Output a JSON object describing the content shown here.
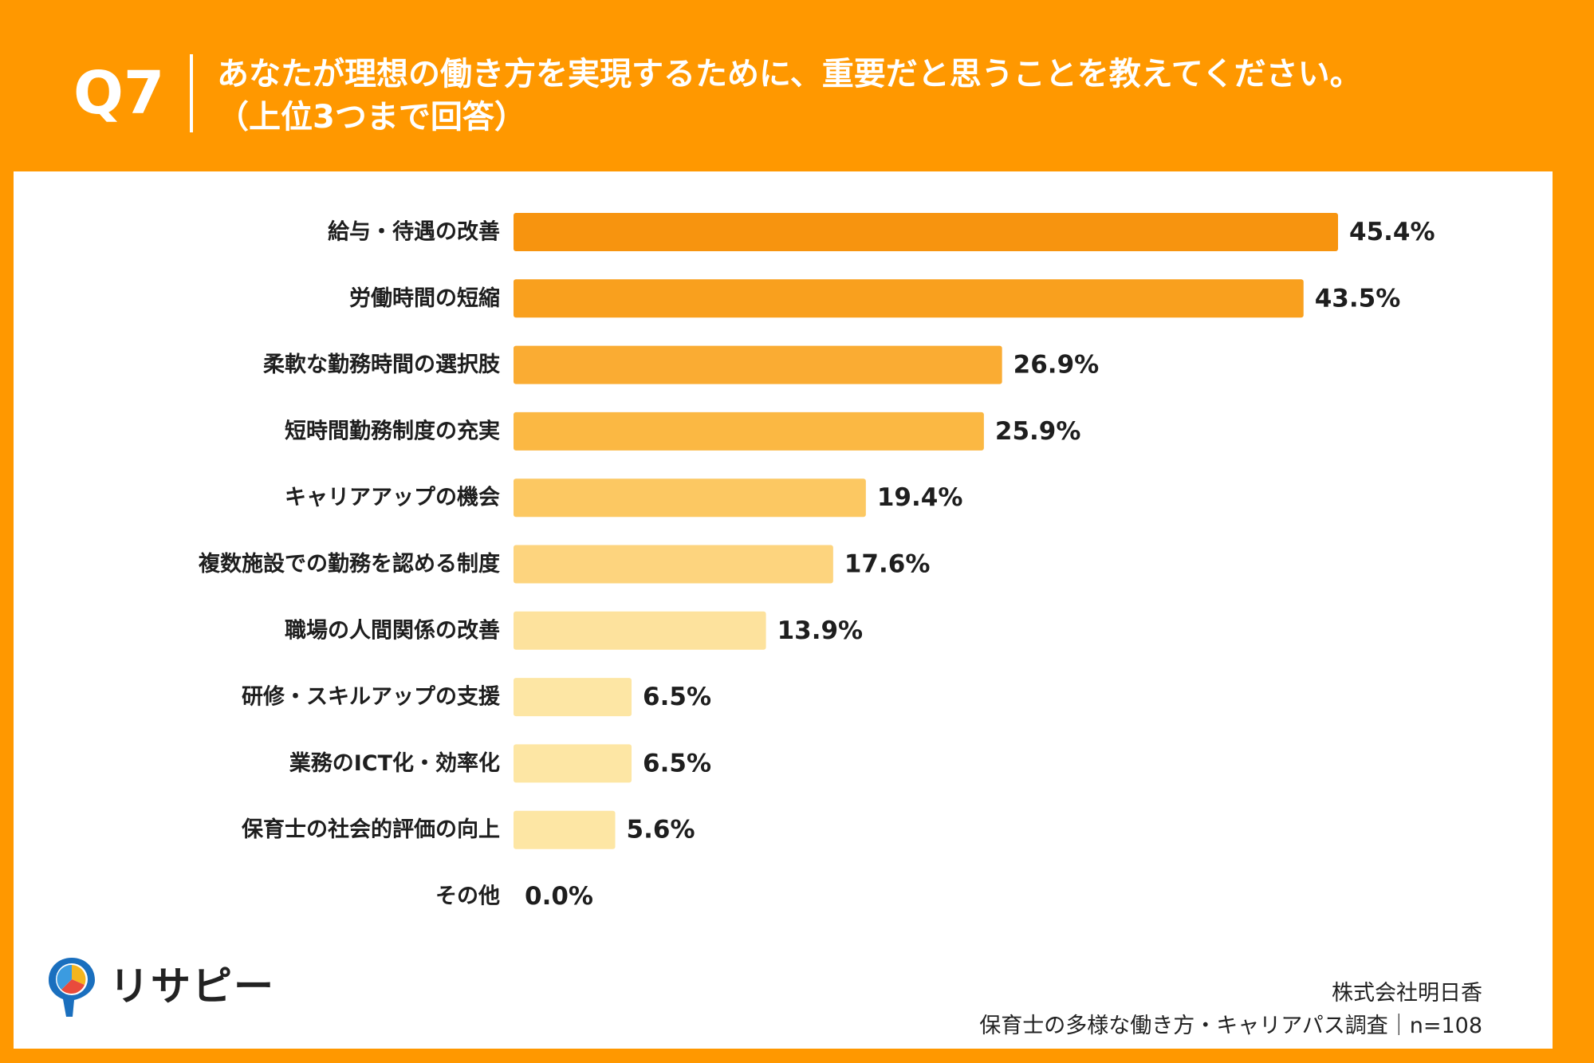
{
  "header": {
    "q_number": "Q7",
    "question_line1": "あなたが理想の働き方を実現するために、重要だと思うことを教えてください。",
    "question_line2": "（上位3つまで回答）"
  },
  "chart_data": {
    "type": "bar",
    "orientation": "horizontal",
    "title": "あなたが理想の働き方を実現するために、重要だと思うことを教えてください。（上位3つまで回答）",
    "categories": [
      "給与・待遇の改善",
      "労働時間の短縮",
      "柔軟な勤務時間の選択肢",
      "短時間勤務制度の充実",
      "キャリアアップの機会",
      "複数施設での勤務を認める制度",
      "職場の人間関係の改善",
      "研修・スキルアップの支援",
      "業務のICT化・効率化",
      "保育士の社会的評価の向上",
      "その他"
    ],
    "values": [
      45.4,
      43.5,
      26.9,
      25.9,
      19.4,
      17.6,
      13.9,
      6.5,
      6.5,
      5.6,
      0.0
    ],
    "value_labels": [
      "45.4%",
      "43.5%",
      "26.9%",
      "25.9%",
      "19.4%",
      "17.6%",
      "13.9%",
      "6.5%",
      "6.5%",
      "5.6%",
      "0.0%"
    ],
    "colors": [
      "#f7940f",
      "#f9a01e",
      "#faac33",
      "#fbb843",
      "#fcc862",
      "#fdd47e",
      "#fde29d",
      "#fde6a4",
      "#fde6a4",
      "#fde6a4",
      "#fde6a4"
    ],
    "xlim": [
      0,
      50
    ],
    "unit": "%"
  },
  "footer": {
    "logo_text": "リサピー",
    "company": "株式会社明日香",
    "survey": "保育士の多様な働き方・キャリアパス調査｜n=108"
  },
  "colors": {
    "background": "#ff9800",
    "panel": "#ffffff",
    "text": "#1e1e1e"
  }
}
